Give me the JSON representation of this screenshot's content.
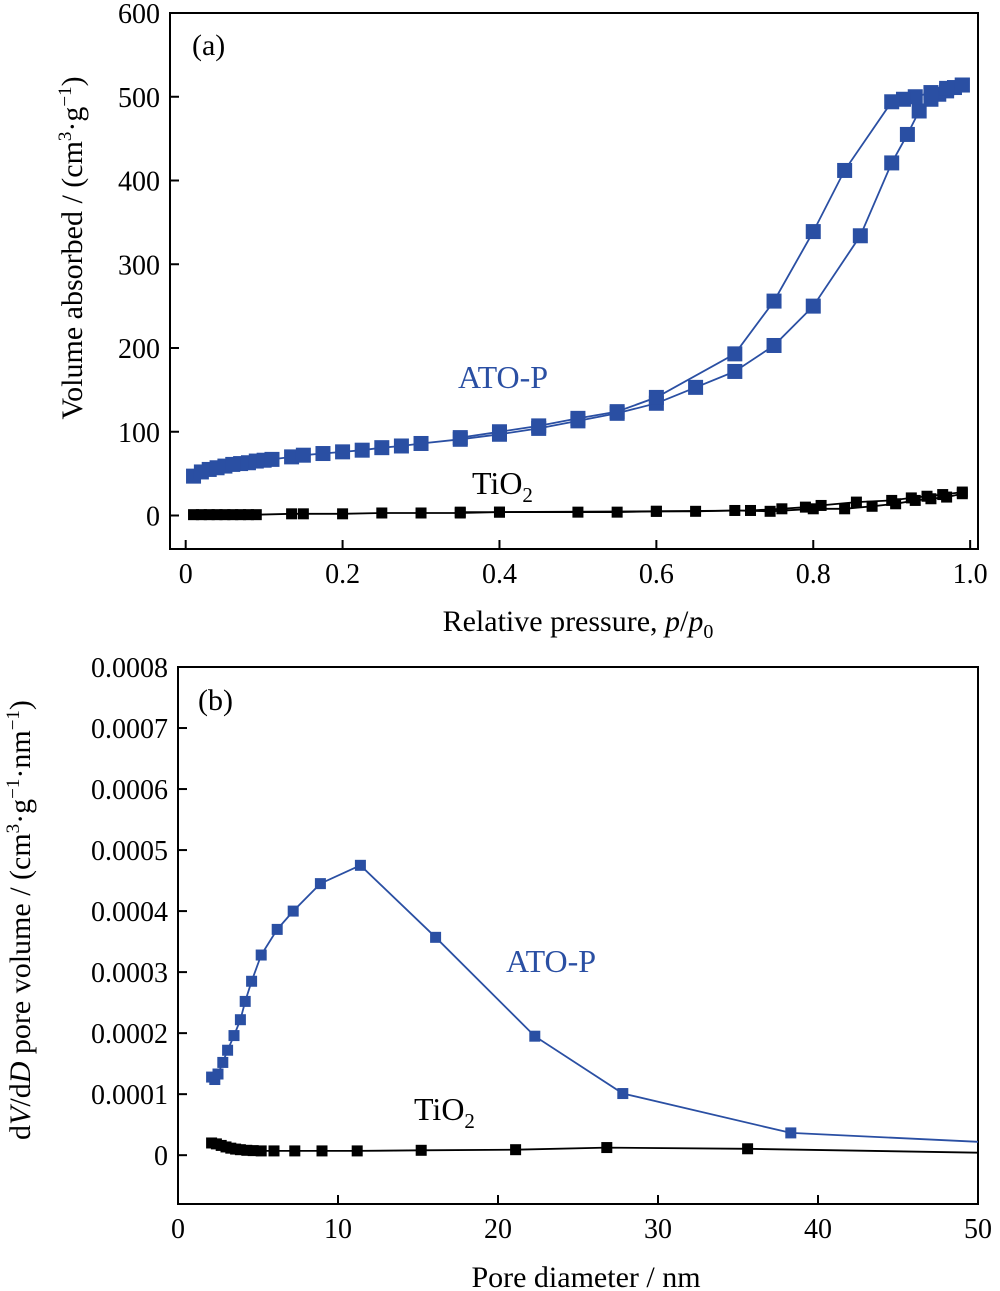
{
  "colors": {
    "ato_p": "#2a4fa3",
    "tio2": "#000000"
  },
  "chart_data": [
    {
      "type": "line",
      "panel_label": "(a)",
      "xlabel": "Relative pressure, p/p0",
      "xlabel_parts": {
        "text": "Relative pressure, ",
        "p": "p",
        "slash": "/",
        "p0": "p",
        "sub": "0"
      },
      "ylabel": "Volume absorbed / (cm3·g−1)",
      "ylabel_parts": {
        "main": "Volume absorbed / (cm",
        "sup3": "3",
        "mid": "·g",
        "sup": "−1",
        "close": ")"
      },
      "xlim": [
        -0.02,
        1.01
      ],
      "ylim": [
        -40,
        600
      ],
      "xticks": [
        0,
        0.2,
        0.4,
        0.6,
        0.8,
        1.0
      ],
      "xtick_labels": [
        "0",
        "0.2",
        "0.4",
        "0.6",
        "0.8",
        "1.0"
      ],
      "yticks": [
        0,
        100,
        200,
        300,
        400,
        500,
        600
      ],
      "ytick_labels": [
        "0",
        "100",
        "200",
        "300",
        "400",
        "500",
        "600"
      ],
      "series": [
        {
          "name": "ATO-P",
          "label_parts": {
            "text": "ATO-P"
          },
          "color": "#2a4fa3",
          "marker": "square-large",
          "branches": [
            {
              "x": [
                0.01,
                0.02,
                0.03,
                0.04,
                0.05,
                0.06,
                0.07,
                0.08,
                0.09,
                0.1,
                0.11,
                0.135,
                0.15,
                0.175,
                0.2,
                0.225,
                0.25,
                0.275,
                0.3,
                0.35,
                0.4,
                0.45,
                0.5,
                0.55,
                0.6,
                0.65,
                0.7,
                0.75,
                0.8,
                0.86,
                0.9,
                0.92,
                0.935,
                0.95,
                0.96,
                0.97,
                0.98,
                0.99
              ],
              "y": [
                47,
                52,
                55,
                57,
                59,
                61,
                62,
                63,
                65,
                66,
                67,
                70,
                72,
                74,
                76,
                78,
                81,
                83,
                86,
                91,
                97,
                104,
                113,
                122,
                134,
                153,
                172,
                203,
                250,
                334,
                421,
                455,
                483,
                497,
                503,
                507,
                511,
                514
              ]
            },
            {
              "x": [
                0.99,
                0.97,
                0.95,
                0.93,
                0.915,
                0.9,
                0.84,
                0.8,
                0.75,
                0.7,
                0.6,
                0.55,
                0.5,
                0.45,
                0.4,
                0.35
              ],
              "y": [
                514,
                510,
                505,
                500,
                497,
                494,
                412,
                339,
                256,
                193,
                141,
                124,
                116,
                107,
                100,
                93
              ]
            }
          ]
        },
        {
          "name": "TiO2",
          "label_parts": {
            "text": "TiO",
            "sub": "2"
          },
          "color": "#000000",
          "marker": "square-small",
          "branches": [
            {
              "x": [
                0.01,
                0.02,
                0.03,
                0.04,
                0.05,
                0.06,
                0.07,
                0.08,
                0.09,
                0.135,
                0.15,
                0.2,
                0.25,
                0.3,
                0.35,
                0.4,
                0.5,
                0.55,
                0.6,
                0.65,
                0.7,
                0.745,
                0.8,
                0.84,
                0.875,
                0.905,
                0.93,
                0.95,
                0.97,
                0.99
              ],
              "y": [
                1,
                1,
                1,
                1,
                1,
                1,
                1,
                1,
                1,
                2,
                2,
                2,
                3,
                3,
                3,
                4,
                4,
                4,
                5,
                5,
                6,
                5,
                8,
                8,
                11,
                14,
                18,
                20,
                22,
                26
              ]
            },
            {
              "x": [
                0.99,
                0.965,
                0.945,
                0.925,
                0.9,
                0.855,
                0.81,
                0.79,
                0.76,
                0.72,
                0.6,
                0.4,
                0.35
              ],
              "y": [
                28,
                25,
                23,
                21,
                18,
                16,
                12,
                10,
                8,
                6,
                5,
                4,
                4
              ]
            }
          ]
        }
      ]
    },
    {
      "type": "line",
      "panel_label": "(b)",
      "xlabel": "Pore diameter / nm",
      "ylabel": "dV/dD pore volume / (cm3·g−1·nm−1)",
      "ylabel_parts": {
        "d1": "d",
        "V": "V",
        "slash": "/d",
        "D": "D",
        "main": " pore volume / (cm",
        "sup3": "3",
        "mid1": "·g",
        "sup1": "−1",
        "mid2": "·nm",
        "sup2": "−1",
        "close": ")"
      },
      "xlim": [
        0,
        50
      ],
      "ylim": [
        -8e-05,
        0.0008
      ],
      "xticks": [
        0,
        10,
        20,
        30,
        40,
        50
      ],
      "xtick_labels": [
        "0",
        "10",
        "20",
        "30",
        "40",
        "50"
      ],
      "yticks": [
        0,
        0.0001,
        0.0002,
        0.0003,
        0.0004,
        0.0005,
        0.0006,
        0.0007,
        0.0008
      ],
      "ytick_labels": [
        "0",
        "0.0001",
        "0.0002",
        "0.0003",
        "0.0004",
        "0.0005",
        "0.0006",
        "0.0007",
        "0.0008"
      ],
      "series": [
        {
          "name": "ATO-P",
          "label_parts": {
            "text": "ATO-P"
          },
          "color": "#2a4fa3",
          "marker": "square-small",
          "branches": [
            {
              "x": [
                2.1,
                2.3,
                2.5,
                2.8,
                3.1,
                3.5,
                3.9,
                4.2,
                4.6,
                5.2,
                6.2,
                7.2,
                8.9,
                11.4,
                16.1,
                22.3,
                27.8,
                38.3,
                50
              ],
              "y": [
                0.000128,
                0.000124,
                0.000133,
                0.000152,
                0.000172,
                0.000196,
                0.000222,
                0.000252,
                0.000285,
                0.000328,
                0.00037,
                0.0004,
                0.000445,
                0.000475,
                0.000357,
                0.000195,
                0.000101,
                3.65e-05,
                2.2e-05
              ]
            }
          ]
        },
        {
          "name": "TiO2",
          "label_parts": {
            "text": "TiO",
            "sub": "2"
          },
          "color": "#000000",
          "marker": "square-small",
          "branches": [
            {
              "x": [
                2.1,
                2.4,
                2.7,
                3.0,
                3.3,
                3.6,
                3.9,
                4.3,
                4.7,
                5.2,
                6.0,
                7.3,
                9.0,
                11.2,
                15.2,
                21.1,
                26.8,
                35.6,
                50
              ],
              "y": [
                2e-05,
                1.85e-05,
                1.6e-05,
                1.35e-05,
                1.15e-05,
                1e-05,
                9e-06,
                8e-06,
                7.5e-06,
                7e-06,
                7e-06,
                7e-06,
                7e-06,
                7e-06,
                8e-06,
                9e-06,
                1.25e-05,
                1.05e-05,
                4e-06
              ]
            }
          ]
        }
      ]
    }
  ]
}
